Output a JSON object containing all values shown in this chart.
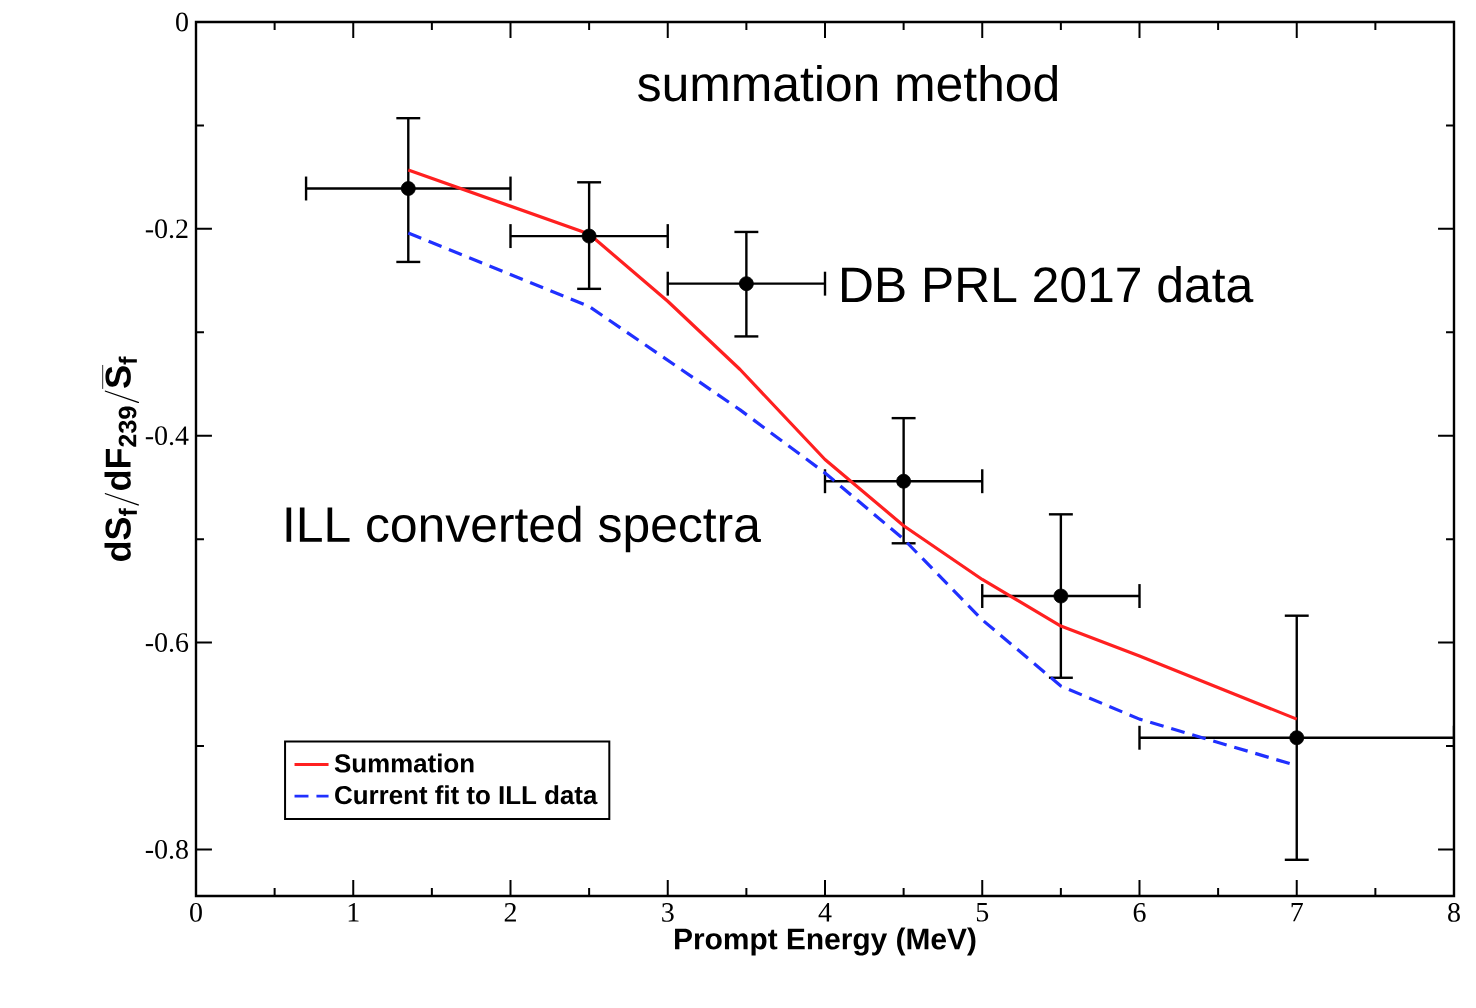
{
  "chart_data": {
    "type": "line",
    "xlabel": "Prompt Energy (MeV)",
    "ylabel": "\\mathbf{dS_f/dF_{239}/\\overline{S}_f}",
    "xlim": [
      0,
      8
    ],
    "ylim": [
      -0.845,
      0
    ],
    "xticks": [
      0,
      1,
      2,
      3,
      4,
      5,
      6,
      7,
      8
    ],
    "yticks": [
      -0.8,
      -0.6,
      -0.4,
      -0.2,
      0
    ],
    "legend": "bottom left",
    "grid": false,
    "annotations": [
      "summation method",
      "DB PRL 2017 data",
      "ILL converted spectra"
    ],
    "series": [
      {
        "type": "scatter",
        "color": "#000000",
        "marker": "circle",
        "x": [
          1.35,
          2.5,
          3.5,
          4.5,
          5.5,
          7
        ],
        "values": [
          -0.161,
          -0.207,
          -0.253,
          -0.444,
          -0.555,
          -0.692
        ],
        "errors": [
          [
            -0.232,
            -0.093
          ],
          [
            -0.258,
            -0.155
          ],
          [
            -0.304,
            -0.203
          ],
          [
            -0.504,
            -0.383
          ],
          [
            -0.634,
            -0.476
          ],
          [
            -0.81,
            -0.574
          ]
        ],
        "xerrors": [
          [
            0.7,
            2
          ],
          [
            2,
            3
          ],
          [
            3,
            4
          ],
          [
            4,
            5
          ],
          [
            5,
            6
          ],
          [
            6,
            8
          ]
        ]
      },
      {
        "name": "Summation",
        "color": "#ff2020",
        "line_style": "solid",
        "x": [
          1.35,
          2.5,
          3.0,
          3.46,
          4.0,
          4.5,
          5.0,
          5.5,
          6.0,
          7.0
        ],
        "values": [
          -0.143,
          -0.205,
          -0.27,
          -0.336,
          -0.423,
          -0.487,
          -0.539,
          -0.584,
          -0.613,
          -0.674
        ]
      },
      {
        "name": "Current fit to ILL data",
        "color": "#2030ff",
        "line_style": "dashed",
        "x": [
          1.35,
          2.5,
          3.46,
          4.0,
          4.5,
          5.0,
          5.5,
          6.0,
          7.0
        ],
        "values": [
          -0.204,
          -0.275,
          -0.375,
          -0.436,
          -0.5,
          -0.578,
          -0.642,
          -0.674,
          -0.719
        ]
      }
    ]
  }
}
